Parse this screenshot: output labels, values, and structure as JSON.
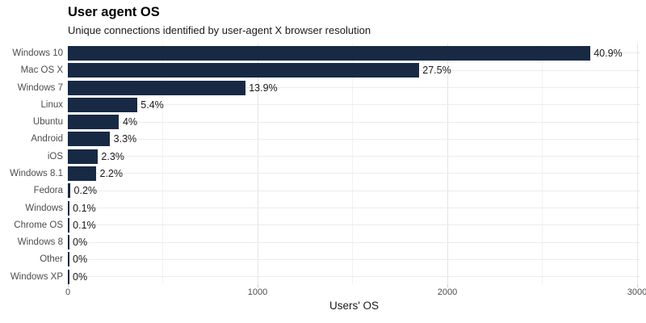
{
  "header": {
    "title": "User agent OS",
    "subtitle": "Unique connections identified by user-agent X browser resolution"
  },
  "chart_data": {
    "type": "bar",
    "orientation": "horizontal",
    "title": "User agent OS",
    "subtitle": "Unique connections identified by user-agent X browser resolution",
    "xlabel": "Users' OS",
    "ylabel": "",
    "categories": [
      "Windows 10",
      "Mac OS X",
      "Windows 7",
      "Linux",
      "Ubuntu",
      "Android",
      "iOS",
      "Windows 8.1",
      "Fedora",
      "Windows",
      "Chrome OS",
      "Windows 8",
      "Other",
      "Windows XP"
    ],
    "series": [
      {
        "name": "Unique connections",
        "percent_labels": [
          "40.9%",
          "27.5%",
          "13.9%",
          "5.4%",
          "4%",
          "3.3%",
          "2.3%",
          "2.2%",
          "0.2%",
          "0.1%",
          "0.1%",
          "0%",
          "0%",
          "0%"
        ],
        "percents": [
          40.9,
          27.5,
          13.9,
          5.4,
          4,
          3.3,
          2.3,
          2.2,
          0.2,
          0.1,
          0.1,
          0,
          0,
          0
        ],
        "estimated_counts": [
          2752,
          1850,
          935,
          365,
          270,
          222,
          157,
          149,
          13,
          7,
          7,
          2,
          2,
          1
        ]
      }
    ],
    "x_ticks": [
      0,
      1000,
      2000,
      3000
    ],
    "x_minor_gridlines": [
      500,
      1500,
      2500
    ],
    "xlim": [
      0,
      3017
    ],
    "grid": "on",
    "legend": "none",
    "colors": {
      "bar": "#182944",
      "grid_major": "#e5e5e5",
      "grid_minor": "#f1f1f1",
      "hgrid": "#ececec",
      "tick": "#cccccc",
      "axis_text": "#4d4d4d",
      "value_label": "#1a1a1a",
      "background": "#ffffff"
    }
  }
}
